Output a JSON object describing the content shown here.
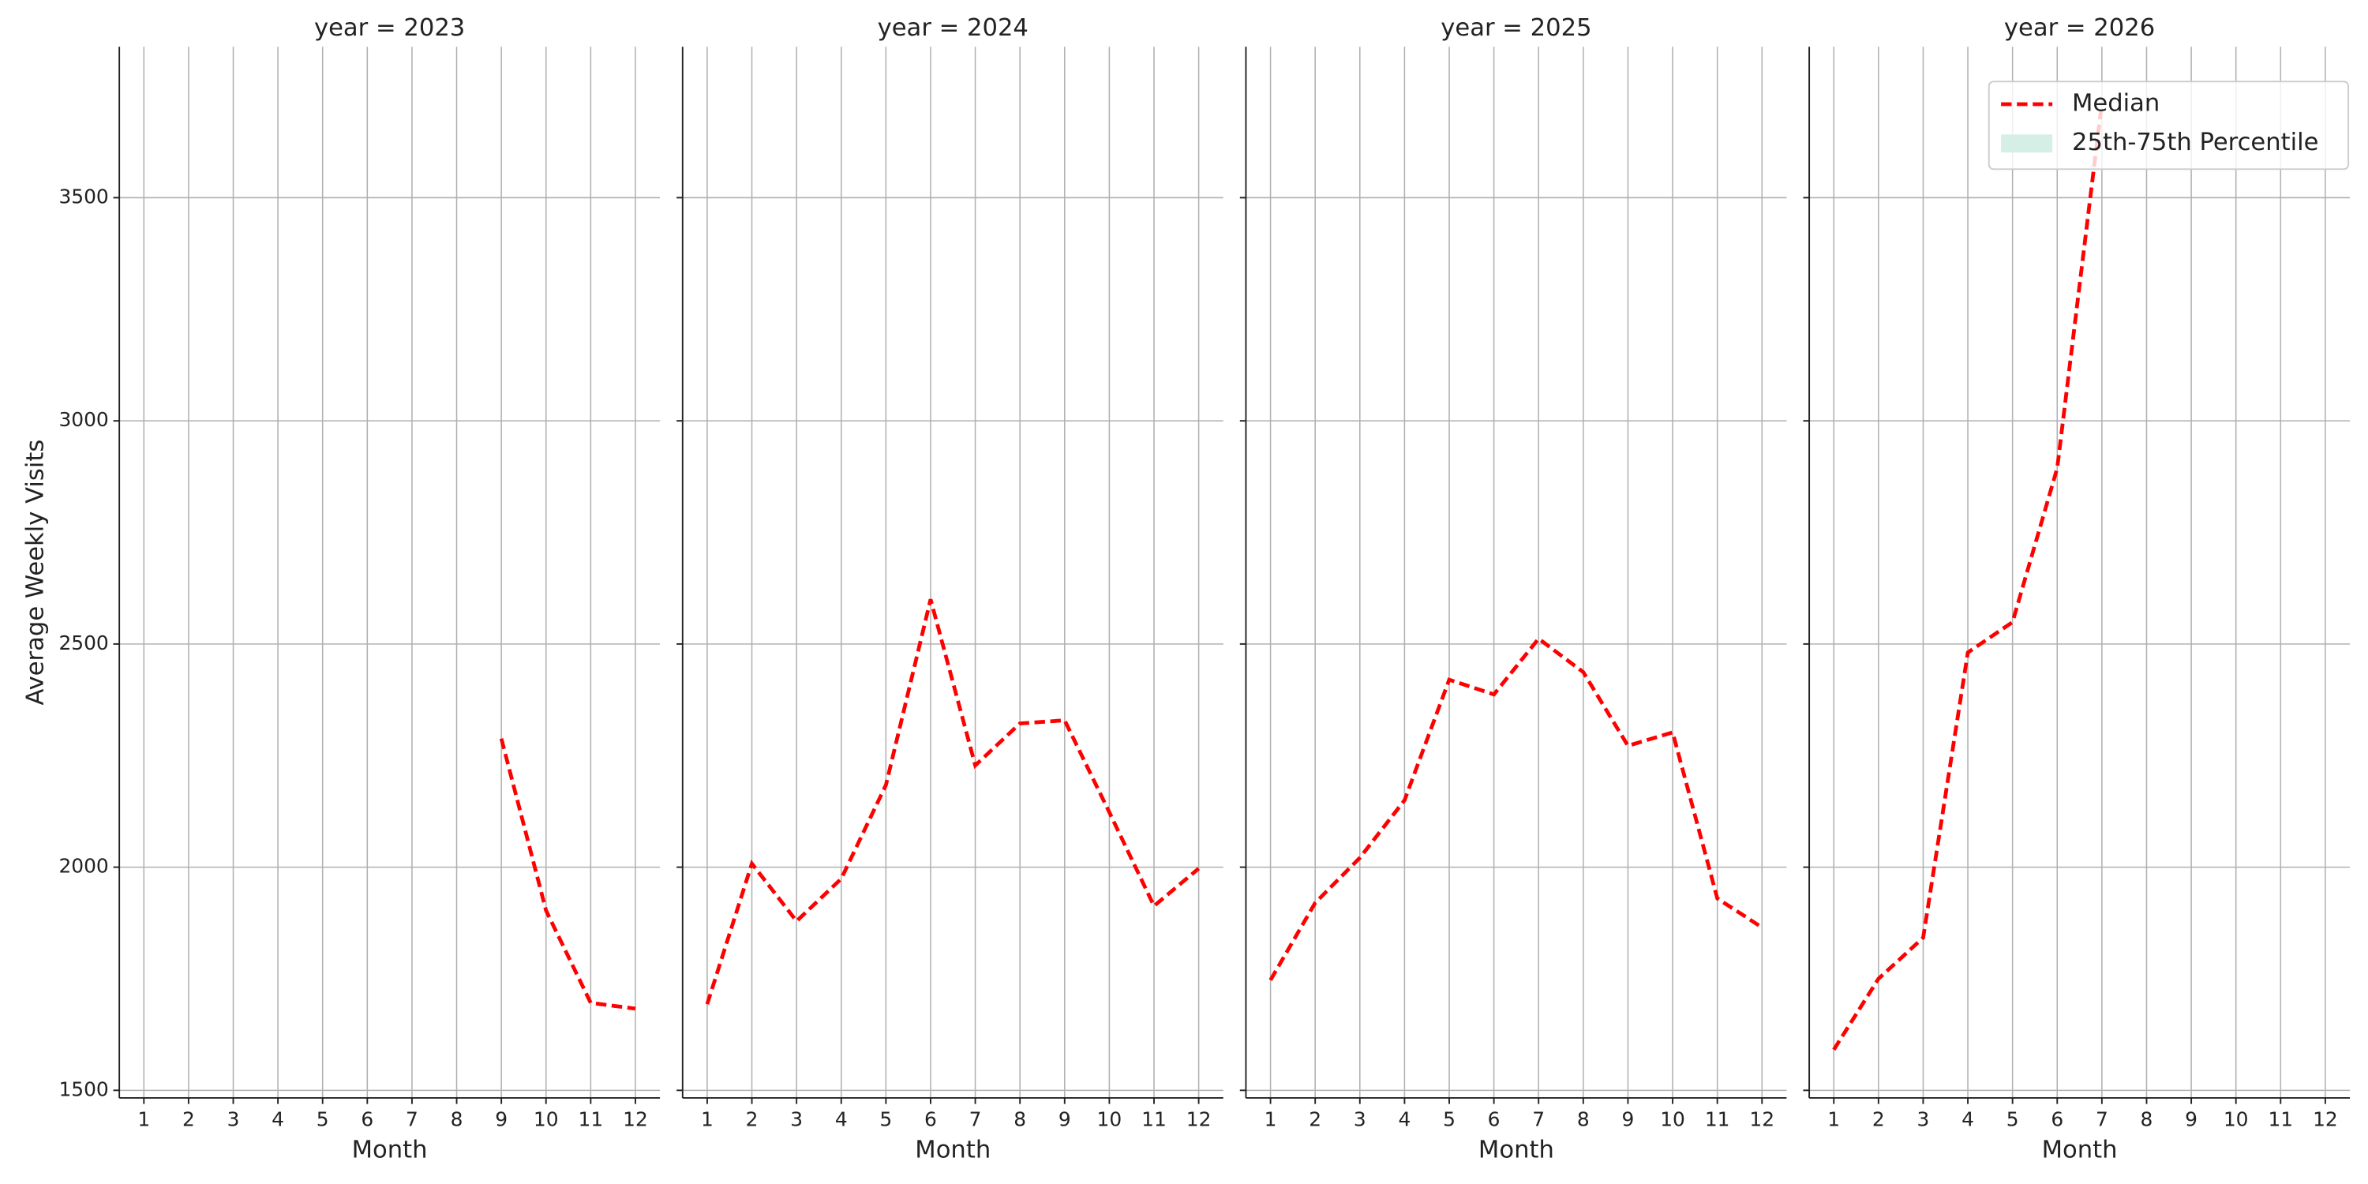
{
  "chart_data": [
    {
      "type": "line",
      "title": "year = 2023",
      "xlabel": "Month",
      "ylabel": "Average Weekly Visits",
      "x": [
        1,
        2,
        3,
        4,
        5,
        6,
        7,
        8,
        9,
        10,
        11,
        12
      ],
      "series": [
        {
          "color": "#ff0000",
          "values": [
            null,
            null,
            null,
            null,
            null,
            null,
            null,
            null,
            2288,
            1903,
            1696,
            1683
          ]
        }
      ],
      "xlim": [
        0.45,
        12.55
      ],
      "ylim": [
        1483,
        3838
      ],
      "xticks": [
        1,
        2,
        3,
        4,
        5,
        6,
        7,
        8,
        9,
        10,
        11,
        12
      ],
      "yticks": [
        1500,
        2000,
        2500,
        3000,
        3500
      ],
      "grid": true,
      "show_ytick_labels": true
    },
    {
      "type": "line",
      "title": "year = 2024",
      "xlabel": "Month",
      "x": [
        1,
        2,
        3,
        4,
        5,
        6,
        7,
        8,
        9,
        10,
        11,
        12
      ],
      "series": [
        {
          "color": "#ff0000",
          "values": [
            1693,
            2008,
            1879,
            1974,
            2184,
            2600,
            2228,
            2322,
            2329,
            2123,
            1913,
            1997
          ]
        }
      ],
      "xlim": [
        0.45,
        12.55
      ],
      "ylim": [
        1483,
        3838
      ],
      "xticks": [
        1,
        2,
        3,
        4,
        5,
        6,
        7,
        8,
        9,
        10,
        11,
        12
      ],
      "yticks": [
        1500,
        2000,
        2500,
        3000,
        3500
      ],
      "grid": true,
      "show_ytick_labels": false
    },
    {
      "type": "line",
      "title": "year = 2025",
      "xlabel": "Month",
      "x": [
        1,
        2,
        3,
        4,
        5,
        6,
        7,
        8,
        9,
        10,
        11,
        12
      ],
      "series": [
        {
          "color": "#ff0000",
          "values": [
            1747,
            1920,
            2021,
            2150,
            2420,
            2387,
            2512,
            2437,
            2272,
            2302,
            1930,
            1865
          ]
        }
      ],
      "xlim": [
        0.45,
        12.55
      ],
      "ylim": [
        1483,
        3838
      ],
      "xticks": [
        1,
        2,
        3,
        4,
        5,
        6,
        7,
        8,
        9,
        10,
        11,
        12
      ],
      "yticks": [
        1500,
        2000,
        2500,
        3000,
        3500
      ],
      "grid": true,
      "show_ytick_labels": false
    },
    {
      "type": "line",
      "title": "year = 2026",
      "xlabel": "Month",
      "x": [
        1,
        2,
        3,
        4,
        5,
        6,
        7,
        8,
        9,
        10,
        11,
        12
      ],
      "series": [
        {
          "color": "#ff0000",
          "values": [
            1591,
            1750,
            1842,
            2481,
            2549,
            2894,
            3713,
            null,
            null,
            null,
            null,
            null
          ]
        }
      ],
      "xlim": [
        0.45,
        12.55
      ],
      "ylim": [
        1483,
        3838
      ],
      "xticks": [
        1,
        2,
        3,
        4,
        5,
        6,
        7,
        8,
        9,
        10,
        11,
        12
      ],
      "yticks": [
        1500,
        2000,
        2500,
        3000,
        3500
      ],
      "grid": true,
      "show_ytick_labels": false,
      "legend": {
        "loc": "upper right",
        "entries": [
          {
            "name": "Median",
            "color": "#ff0000",
            "style": "dashed"
          },
          {
            "name": "25th-75th Percentile",
            "color": "#d6efe6",
            "style": "patch"
          }
        ]
      }
    }
  ]
}
